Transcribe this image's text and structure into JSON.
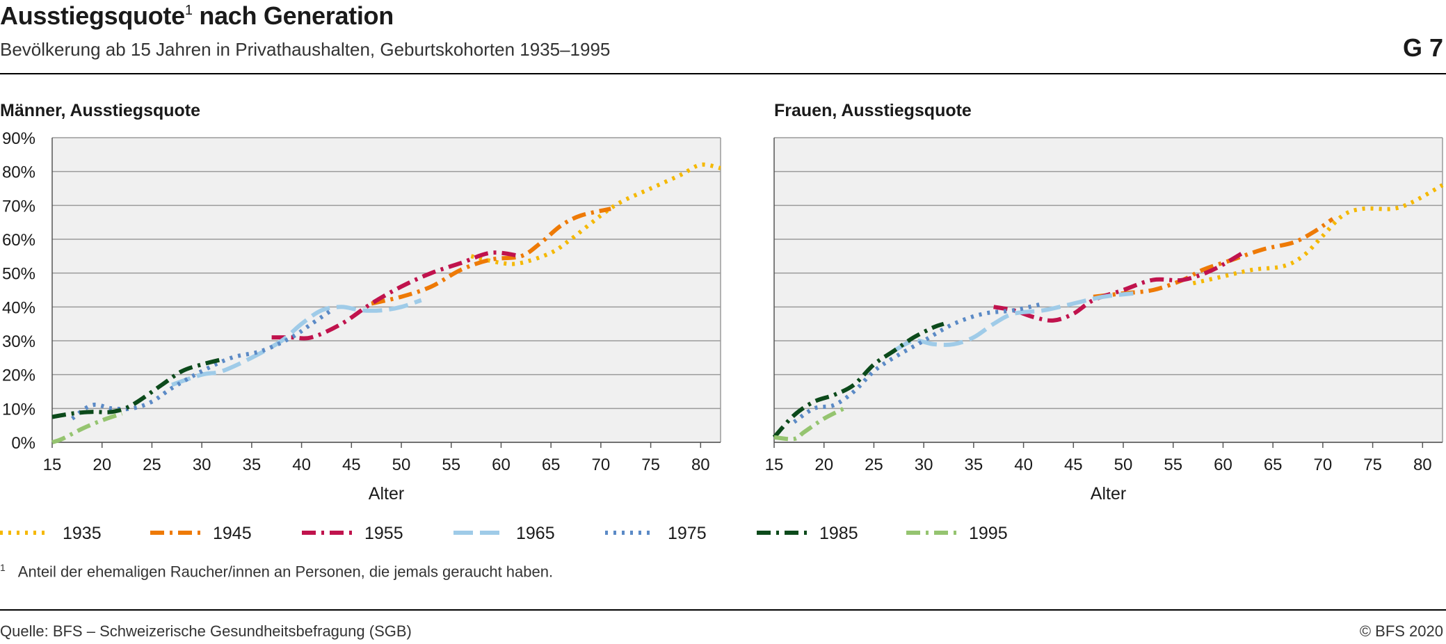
{
  "header": {
    "title": "Ausstiegsquote",
    "title_sup": "1",
    "title_rest": " nach Generation",
    "subtitle": "Bevölkerung ab 15 Jahren in Privathaushalten, Geburtskohorten 1935–1995",
    "graphic_code": "G 7"
  },
  "footer": {
    "footnote_marker": "1",
    "footnote": "Anteil der ehemaligen Raucher/innen an Personen, die jemals geraucht haben.",
    "source": "Quelle: BFS – Schweizerische Gesundheitsbefragung (SGB)",
    "copyright": "© BFS 2020"
  },
  "chart_data": [
    {
      "type": "line",
      "title": "Männer, Ausstiegsquote",
      "xlabel": "Alter",
      "ylabel": "",
      "xlim": [
        15,
        82
      ],
      "ylim": [
        0,
        90
      ],
      "xticks": [
        "15",
        "20",
        "25",
        "30",
        "35",
        "40",
        "45",
        "50",
        "55",
        "60",
        "65",
        "70",
        "75",
        "80"
      ],
      "yticks": [
        "0%",
        "10%",
        "20%",
        "30%",
        "40%",
        "50%",
        "60%",
        "70%",
        "80%",
        "90%"
      ],
      "grid": true,
      "legend": "bottom",
      "series": [
        {
          "name": "1935",
          "color": "#f5b800",
          "dash": "dotted",
          "points": [
            [
              57,
              55
            ],
            [
              60,
              53
            ],
            [
              62,
              53
            ],
            [
              65,
              56
            ],
            [
              67,
              60
            ],
            [
              70,
              67
            ],
            [
              72,
              71
            ],
            [
              75,
              75
            ],
            [
              78,
              79
            ],
            [
              80,
              82
            ],
            [
              82,
              81
            ]
          ]
        },
        {
          "name": "1945",
          "color": "#ee7a06",
          "dash": "dashdot",
          "points": [
            [
              47,
              41
            ],
            [
              50,
              43
            ],
            [
              53,
              46
            ],
            [
              56,
              51
            ],
            [
              59,
              54
            ],
            [
              62,
              55
            ],
            [
              64,
              59
            ],
            [
              66,
              64
            ],
            [
              68,
              67
            ],
            [
              71,
              69
            ]
          ]
        },
        {
          "name": "1955",
          "color": "#c0134d",
          "dash": "dashdot",
          "points": [
            [
              37,
              31
            ],
            [
              39,
              31
            ],
            [
              41,
              31
            ],
            [
              44,
              35
            ],
            [
              47,
              41
            ],
            [
              50,
              46
            ],
            [
              53,
              50
            ],
            [
              56,
              53
            ],
            [
              59,
              56
            ],
            [
              62,
              55
            ]
          ]
        },
        {
          "name": "1965",
          "color": "#9fcbe8",
          "dash": "dashed",
          "points": [
            [
              27,
              17
            ],
            [
              30,
              20
            ],
            [
              32,
              21
            ],
            [
              35,
              25
            ],
            [
              38,
              30
            ],
            [
              40,
              35
            ],
            [
              42,
              39
            ],
            [
              44,
              40
            ],
            [
              46,
              39
            ],
            [
              48,
              39
            ],
            [
              50,
              40
            ],
            [
              52,
              42
            ]
          ]
        },
        {
          "name": "1975",
          "color": "#5b8ac6",
          "dash": "dotted",
          "points": [
            [
              17,
              7
            ],
            [
              19,
              11
            ],
            [
              21,
              10
            ],
            [
              23,
              10
            ],
            [
              25,
              12
            ],
            [
              27,
              16
            ],
            [
              30,
              21
            ],
            [
              33,
              25
            ],
            [
              36,
              27
            ],
            [
              39,
              31
            ],
            [
              41,
              35
            ],
            [
              43,
              39
            ]
          ]
        },
        {
          "name": "1985",
          "color": "#0c4a1b",
          "dash": "dashdot",
          "points": [
            [
              15,
              7.5
            ],
            [
              17,
              8.5
            ],
            [
              19,
              9
            ],
            [
              21,
              9
            ],
            [
              23,
              11
            ],
            [
              26,
              17
            ],
            [
              28,
              21
            ],
            [
              30,
              23
            ],
            [
              32,
              24.5
            ]
          ]
        },
        {
          "name": "1995",
          "color": "#95c470",
          "dash": "dashdot",
          "points": [
            [
              15,
              0
            ],
            [
              16,
              1
            ],
            [
              18,
              4
            ],
            [
              20,
              6.5
            ],
            [
              22,
              8.5
            ]
          ]
        }
      ]
    },
    {
      "type": "line",
      "title": "Frauen, Ausstiegsquote",
      "xlabel": "Alter",
      "ylabel": "",
      "xlim": [
        15,
        82
      ],
      "ylim": [
        0,
        90
      ],
      "xticks": [
        "15",
        "20",
        "25",
        "30",
        "35",
        "40",
        "45",
        "50",
        "55",
        "60",
        "65",
        "70",
        "75",
        "80"
      ],
      "yticks": [
        "0%",
        "10%",
        "20%",
        "30%",
        "40%",
        "50%",
        "60%",
        "70%",
        "80%",
        "90%"
      ],
      "grid": true,
      "legend": "bottom",
      "series": [
        {
          "name": "1935",
          "color": "#f5b800",
          "dash": "dotted",
          "points": [
            [
              57,
              47
            ],
            [
              60,
              49
            ],
            [
              63,
              51
            ],
            [
              66,
              52
            ],
            [
              68,
              55
            ],
            [
              70,
              61
            ],
            [
              72,
              67
            ],
            [
              74,
              69
            ],
            [
              77,
              69
            ],
            [
              79,
              71
            ],
            [
              82,
              76
            ]
          ]
        },
        {
          "name": "1945",
          "color": "#ee7a06",
          "dash": "dashdot",
          "points": [
            [
              47,
              43
            ],
            [
              50,
              44
            ],
            [
              53,
              45
            ],
            [
              56,
              48
            ],
            [
              58,
              51
            ],
            [
              61,
              54
            ],
            [
              64,
              57
            ],
            [
              67,
              59
            ],
            [
              69,
              62
            ],
            [
              71,
              66
            ]
          ]
        },
        {
          "name": "1955",
          "color": "#c0134d",
          "dash": "dashdot",
          "points": [
            [
              37,
              40
            ],
            [
              39,
              39
            ],
            [
              41,
              37
            ],
            [
              43,
              36
            ],
            [
              45,
              38
            ],
            [
              47,
              42
            ],
            [
              50,
              45
            ],
            [
              53,
              48
            ],
            [
              56,
              48
            ],
            [
              59,
              51
            ],
            [
              62,
              56
            ]
          ]
        },
        {
          "name": "1965",
          "color": "#9fcbe8",
          "dash": "dashed",
          "points": [
            [
              27,
              27
            ],
            [
              29,
              30
            ],
            [
              31,
              29
            ],
            [
              33,
              29
            ],
            [
              35,
              31
            ],
            [
              37,
              35
            ],
            [
              39,
              38
            ],
            [
              42,
              39
            ],
            [
              45,
              41
            ],
            [
              48,
              43
            ],
            [
              51,
              44
            ]
          ]
        },
        {
          "name": "1975",
          "color": "#5b8ac6",
          "dash": "dotted",
          "points": [
            [
              17,
              6
            ],
            [
              19,
              10
            ],
            [
              21,
              11
            ],
            [
              23,
              15
            ],
            [
              25,
              21
            ],
            [
              27,
              25
            ],
            [
              30,
              30
            ],
            [
              33,
              35
            ],
            [
              36,
              38
            ],
            [
              39,
              39
            ],
            [
              42,
              41
            ]
          ]
        },
        {
          "name": "1985",
          "color": "#0c4a1b",
          "dash": "dashdot",
          "points": [
            [
              15,
              1.5
            ],
            [
              17,
              8
            ],
            [
              19,
              12
            ],
            [
              21,
              14
            ],
            [
              23,
              17
            ],
            [
              25,
              23
            ],
            [
              27,
              27
            ],
            [
              29,
              31
            ],
            [
              31,
              34
            ],
            [
              32,
              35
            ]
          ]
        },
        {
          "name": "1995",
          "color": "#95c470",
          "dash": "dashdot",
          "points": [
            [
              15,
              1.5
            ],
            [
              17,
              1
            ],
            [
              18,
              3
            ],
            [
              20,
              7
            ],
            [
              22,
              10
            ]
          ]
        }
      ]
    }
  ]
}
